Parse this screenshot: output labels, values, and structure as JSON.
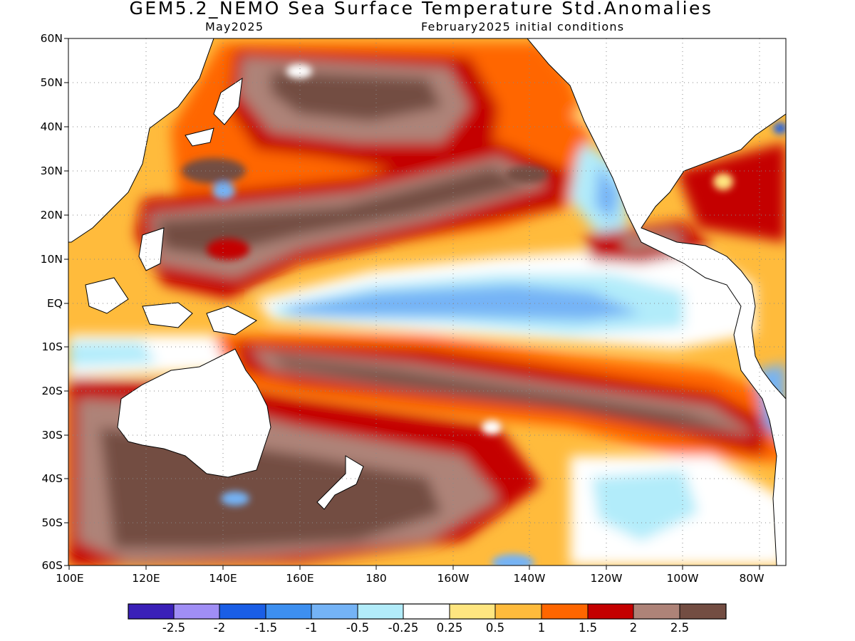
{
  "title": "GEM5.2_NEMO Sea Surface Temperature Std.Anomalies",
  "subtitle_left": "May2025",
  "subtitle_right": "February2025 initial conditions",
  "lat_labels": [
    "60N",
    "50N",
    "40N",
    "30N",
    "20N",
    "10N",
    "EQ",
    "10S",
    "20S",
    "30S",
    "40S",
    "50S",
    "60S"
  ],
  "lon_labels": [
    "100E",
    "120E",
    "140E",
    "160E",
    "180",
    "160W",
    "140W",
    "120W",
    "100W",
    "80W"
  ],
  "colorbar": {
    "colors": [
      "#3a20b8",
      "#a08ef5",
      "#1a5ee6",
      "#3d8ff0",
      "#74b3f6",
      "#b2ecfa",
      "#ffffff",
      "#ffe680",
      "#ffbb3c",
      "#ff6600",
      "#c40000",
      "#ae8378",
      "#734d42"
    ],
    "labels": [
      "-2.5",
      "-2",
      "-1.5",
      "-1",
      "-0.5",
      "-0.25",
      "0.25",
      "0.5",
      "1",
      "1.5",
      "2",
      "2.5"
    ]
  }
}
